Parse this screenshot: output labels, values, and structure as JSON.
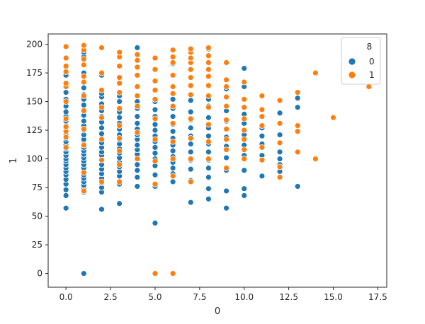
{
  "chart_data": {
    "type": "scatter",
    "xlabel": "0",
    "ylabel": "1",
    "xlim": [
      -1,
      18
    ],
    "ylim": [
      -12,
      209
    ],
    "xticks": [
      0.0,
      2.5,
      5.0,
      7.5,
      10.0,
      12.5,
      15.0,
      17.5
    ],
    "xtick_labels": [
      "0.0",
      "2.5",
      "5.0",
      "7.5",
      "10.0",
      "12.5",
      "15.0",
      "17.5"
    ],
    "yticks": [
      0,
      25,
      50,
      75,
      100,
      125,
      150,
      175,
      200
    ],
    "ytick_labels": [
      "0",
      "25",
      "50",
      "75",
      "100",
      "125",
      "150",
      "175",
      "200"
    ],
    "grid": false,
    "legend": {
      "title": "8",
      "position": "top-right"
    },
    "series": [
      {
        "name": "0",
        "color": "#1f77b4",
        "points": [
          [
            0,
            57
          ],
          [
            0,
            68
          ],
          [
            0,
            73
          ],
          [
            0,
            78
          ],
          [
            0,
            82
          ],
          [
            0,
            86
          ],
          [
            0,
            89
          ],
          [
            0,
            92
          ],
          [
            0,
            95
          ],
          [
            0,
            98
          ],
          [
            0,
            100
          ],
          [
            0,
            103
          ],
          [
            0,
            106
          ],
          [
            0,
            109
          ],
          [
            0,
            112
          ],
          [
            0,
            115
          ],
          [
            0,
            118
          ],
          [
            0,
            121
          ],
          [
            0,
            125
          ],
          [
            0,
            129
          ],
          [
            0,
            133
          ],
          [
            0,
            137
          ],
          [
            0,
            141
          ],
          [
            0,
            146
          ],
          [
            0,
            152
          ],
          [
            0,
            158
          ],
          [
            0,
            163
          ],
          [
            0,
            173
          ],
          [
            0,
            180
          ],
          [
            1,
            0
          ],
          [
            1,
            71
          ],
          [
            1,
            74
          ],
          [
            1,
            77
          ],
          [
            1,
            80
          ],
          [
            1,
            83
          ],
          [
            1,
            86
          ],
          [
            1,
            89
          ],
          [
            1,
            92
          ],
          [
            1,
            95
          ],
          [
            1,
            98
          ],
          [
            1,
            101
          ],
          [
            1,
            104
          ],
          [
            1,
            107
          ],
          [
            1,
            110
          ],
          [
            1,
            113
          ],
          [
            1,
            117
          ],
          [
            1,
            121
          ],
          [
            1,
            125
          ],
          [
            1,
            129
          ],
          [
            1,
            133
          ],
          [
            1,
            138
          ],
          [
            1,
            143
          ],
          [
            1,
            147
          ],
          [
            1,
            152
          ],
          [
            1,
            156
          ],
          [
            1,
            162
          ],
          [
            1,
            175
          ],
          [
            1,
            189
          ],
          [
            1,
            193
          ],
          [
            2,
            56
          ],
          [
            2,
            71
          ],
          [
            2,
            75
          ],
          [
            2,
            79
          ],
          [
            2,
            83
          ],
          [
            2,
            87
          ],
          [
            2,
            91
          ],
          [
            2,
            95
          ],
          [
            2,
            99
          ],
          [
            2,
            103
          ],
          [
            2,
            106
          ],
          [
            2,
            110
          ],
          [
            2,
            114
          ],
          [
            2,
            118
          ],
          [
            2,
            122
          ],
          [
            2,
            127
          ],
          [
            2,
            132
          ],
          [
            2,
            137
          ],
          [
            2,
            142
          ],
          [
            2,
            148
          ],
          [
            2,
            154
          ],
          [
            2,
            157
          ],
          [
            2,
            173
          ],
          [
            3,
            61
          ],
          [
            3,
            78
          ],
          [
            3,
            85
          ],
          [
            3,
            89
          ],
          [
            3,
            93
          ],
          [
            3,
            97
          ],
          [
            3,
            101
          ],
          [
            3,
            105
          ],
          [
            3,
            109
          ],
          [
            3,
            113
          ],
          [
            3,
            117
          ],
          [
            3,
            121
          ],
          [
            3,
            126
          ],
          [
            3,
            131
          ],
          [
            3,
            136
          ],
          [
            3,
            141
          ],
          [
            3,
            150
          ],
          [
            3,
            155
          ],
          [
            4,
            76
          ],
          [
            4,
            84
          ],
          [
            4,
            90
          ],
          [
            4,
            95
          ],
          [
            4,
            100
          ],
          [
            4,
            104
          ],
          [
            4,
            108
          ],
          [
            4,
            112
          ],
          [
            4,
            117
          ],
          [
            4,
            121
          ],
          [
            4,
            126
          ],
          [
            4,
            131
          ],
          [
            4,
            137
          ],
          [
            4,
            144
          ],
          [
            4,
            150
          ],
          [
            4,
            197
          ],
          [
            5,
            44
          ],
          [
            5,
            76
          ],
          [
            5,
            86
          ],
          [
            5,
            94
          ],
          [
            5,
            100
          ],
          [
            5,
            105
          ],
          [
            5,
            110
          ],
          [
            5,
            115
          ],
          [
            5,
            120
          ],
          [
            5,
            125
          ],
          [
            5,
            130
          ],
          [
            5,
            137
          ],
          [
            5,
            143
          ],
          [
            5,
            150
          ],
          [
            6,
            80
          ],
          [
            6,
            87
          ],
          [
            6,
            92
          ],
          [
            6,
            97
          ],
          [
            6,
            102
          ],
          [
            6,
            107
          ],
          [
            6,
            112
          ],
          [
            6,
            118
          ],
          [
            6,
            124
          ],
          [
            6,
            130
          ],
          [
            6,
            137
          ],
          [
            6,
            144
          ],
          [
            6,
            152
          ],
          [
            6,
            163
          ],
          [
            6,
            183
          ],
          [
            7,
            62
          ],
          [
            7,
            81
          ],
          [
            7,
            91
          ],
          [
            7,
            99
          ],
          [
            7,
            106
          ],
          [
            7,
            113
          ],
          [
            7,
            120
          ],
          [
            7,
            127
          ],
          [
            7,
            134
          ],
          [
            7,
            141
          ],
          [
            7,
            151
          ],
          [
            8,
            65
          ],
          [
            8,
            74
          ],
          [
            8,
            84
          ],
          [
            8,
            92
          ],
          [
            8,
            99
          ],
          [
            8,
            106
          ],
          [
            8,
            113
          ],
          [
            8,
            120
          ],
          [
            8,
            127
          ],
          [
            8,
            136
          ],
          [
            8,
            146
          ],
          [
            8,
            152
          ],
          [
            8,
            196
          ],
          [
            9,
            57
          ],
          [
            9,
            72
          ],
          [
            9,
            90
          ],
          [
            9,
            101
          ],
          [
            9,
            111
          ],
          [
            9,
            119
          ],
          [
            9,
            126
          ],
          [
            9,
            133
          ],
          [
            9,
            142
          ],
          [
            9,
            161
          ],
          [
            10,
            68
          ],
          [
            10,
            74
          ],
          [
            10,
            90
          ],
          [
            10,
            103
          ],
          [
            10,
            112
          ],
          [
            10,
            121
          ],
          [
            10,
            131
          ],
          [
            10,
            139
          ],
          [
            10,
            163
          ],
          [
            10,
            179
          ],
          [
            11,
            85
          ],
          [
            11,
            103
          ],
          [
            11,
            113
          ],
          [
            11,
            120
          ],
          [
            11,
            127
          ],
          [
            12,
            89
          ],
          [
            12,
            95
          ],
          [
            12,
            100
          ],
          [
            12,
            106
          ],
          [
            12,
            121
          ],
          [
            12,
            140
          ],
          [
            13,
            76
          ],
          [
            13,
            106
          ],
          [
            13,
            145
          ],
          [
            13,
            153
          ]
        ]
      },
      {
        "name": "1",
        "color": "#ff7f0e",
        "points": [
          [
            0,
            110
          ],
          [
            0,
            119
          ],
          [
            0,
            124
          ],
          [
            0,
            128
          ],
          [
            0,
            135
          ],
          [
            0,
            150
          ],
          [
            0,
            163
          ],
          [
            0,
            166
          ],
          [
            0,
            176
          ],
          [
            0,
            181
          ],
          [
            0,
            188
          ],
          [
            0,
            198
          ],
          [
            1,
            72
          ],
          [
            1,
            88
          ],
          [
            1,
            112
          ],
          [
            1,
            126
          ],
          [
            1,
            142
          ],
          [
            1,
            155
          ],
          [
            1,
            167
          ],
          [
            1,
            172
          ],
          [
            1,
            182
          ],
          [
            1,
            187
          ],
          [
            1,
            195
          ],
          [
            1,
            199
          ],
          [
            2,
            80
          ],
          [
            2,
            99
          ],
          [
            2,
            117
          ],
          [
            2,
            136
          ],
          [
            2,
            145
          ],
          [
            2,
            160
          ],
          [
            2,
            175
          ],
          [
            2,
            197
          ],
          [
            3,
            80
          ],
          [
            3,
            95
          ],
          [
            3,
            107
          ],
          [
            3,
            118
          ],
          [
            3,
            129
          ],
          [
            3,
            144
          ],
          [
            3,
            158
          ],
          [
            3,
            166
          ],
          [
            3,
            171
          ],
          [
            3,
            181
          ],
          [
            3,
            189
          ],
          [
            3,
            193
          ],
          [
            4,
            100
          ],
          [
            4,
            123
          ],
          [
            4,
            146
          ],
          [
            4,
            155
          ],
          [
            4,
            163
          ],
          [
            4,
            173
          ],
          [
            4,
            180
          ],
          [
            4,
            186
          ],
          [
            4,
            191
          ],
          [
            5,
            0
          ],
          [
            5,
            78
          ],
          [
            5,
            98
          ],
          [
            5,
            117
          ],
          [
            5,
            135
          ],
          [
            5,
            152
          ],
          [
            5,
            160
          ],
          [
            5,
            168
          ],
          [
            5,
            178
          ],
          [
            5,
            188
          ],
          [
            6,
            0
          ],
          [
            6,
            85
          ],
          [
            6,
            100
          ],
          [
            6,
            115
          ],
          [
            6,
            131
          ],
          [
            6,
            146
          ],
          [
            6,
            157
          ],
          [
            6,
            163
          ],
          [
            6,
            173
          ],
          [
            6,
            184
          ],
          [
            6,
            189
          ],
          [
            6,
            195
          ],
          [
            7,
            80
          ],
          [
            7,
            100
          ],
          [
            7,
            118
          ],
          [
            7,
            135
          ],
          [
            7,
            156
          ],
          [
            7,
            164
          ],
          [
            7,
            171
          ],
          [
            7,
            178
          ],
          [
            7,
            184
          ],
          [
            7,
            188
          ],
          [
            7,
            193
          ],
          [
            7,
            196
          ],
          [
            8,
            100
          ],
          [
            8,
            115
          ],
          [
            8,
            130
          ],
          [
            8,
            145
          ],
          [
            8,
            155
          ],
          [
            8,
            164
          ],
          [
            8,
            172
          ],
          [
            8,
            178
          ],
          [
            8,
            184
          ],
          [
            8,
            190
          ],
          [
            8,
            197
          ],
          [
            9,
            92
          ],
          [
            9,
            108
          ],
          [
            9,
            117
          ],
          [
            9,
            126
          ],
          [
            9,
            134
          ],
          [
            9,
            146
          ],
          [
            9,
            154
          ],
          [
            9,
            163
          ],
          [
            9,
            169
          ],
          [
            9,
            184
          ],
          [
            10,
            100
          ],
          [
            10,
            108
          ],
          [
            10,
            117
          ],
          [
            10,
            125
          ],
          [
            10,
            135
          ],
          [
            10,
            145
          ],
          [
            10,
            152
          ],
          [
            10,
            167
          ],
          [
            11,
            99
          ],
          [
            11,
            110
          ],
          [
            11,
            129
          ],
          [
            11,
            137
          ],
          [
            11,
            143
          ],
          [
            11,
            155
          ],
          [
            12,
            84
          ],
          [
            12,
            93
          ],
          [
            12,
            114
          ],
          [
            12,
            131
          ],
          [
            12,
            151
          ],
          [
            13,
            106
          ],
          [
            13,
            124
          ],
          [
            13,
            129
          ],
          [
            13,
            158
          ],
          [
            14,
            100
          ],
          [
            14,
            175
          ],
          [
            15,
            136
          ],
          [
            17,
            163
          ]
        ]
      }
    ]
  }
}
